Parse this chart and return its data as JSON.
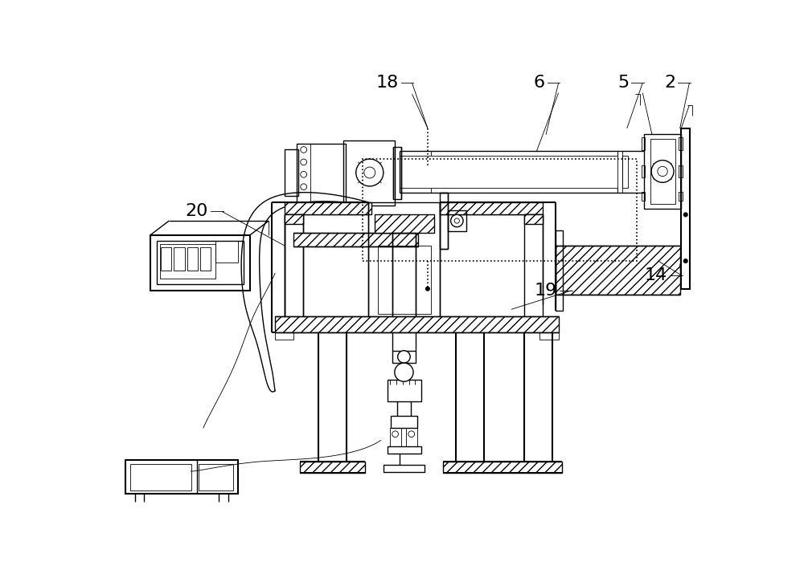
{
  "bg_color": "#ffffff",
  "line_color": "#000000",
  "lw": 1.0,
  "lw2": 1.5,
  "lw3": 0.6,
  "label_fs": 16,
  "labels": [
    [
      "18",
      500,
      22,
      525,
      95
    ],
    [
      "6",
      735,
      22,
      715,
      105
    ],
    [
      "5",
      870,
      22,
      845,
      95
    ],
    [
      "2",
      945,
      22,
      930,
      95
    ],
    [
      "20",
      195,
      230,
      295,
      285
    ],
    [
      "19",
      755,
      358,
      660,
      388
    ],
    [
      "14",
      932,
      333,
      895,
      310
    ]
  ]
}
